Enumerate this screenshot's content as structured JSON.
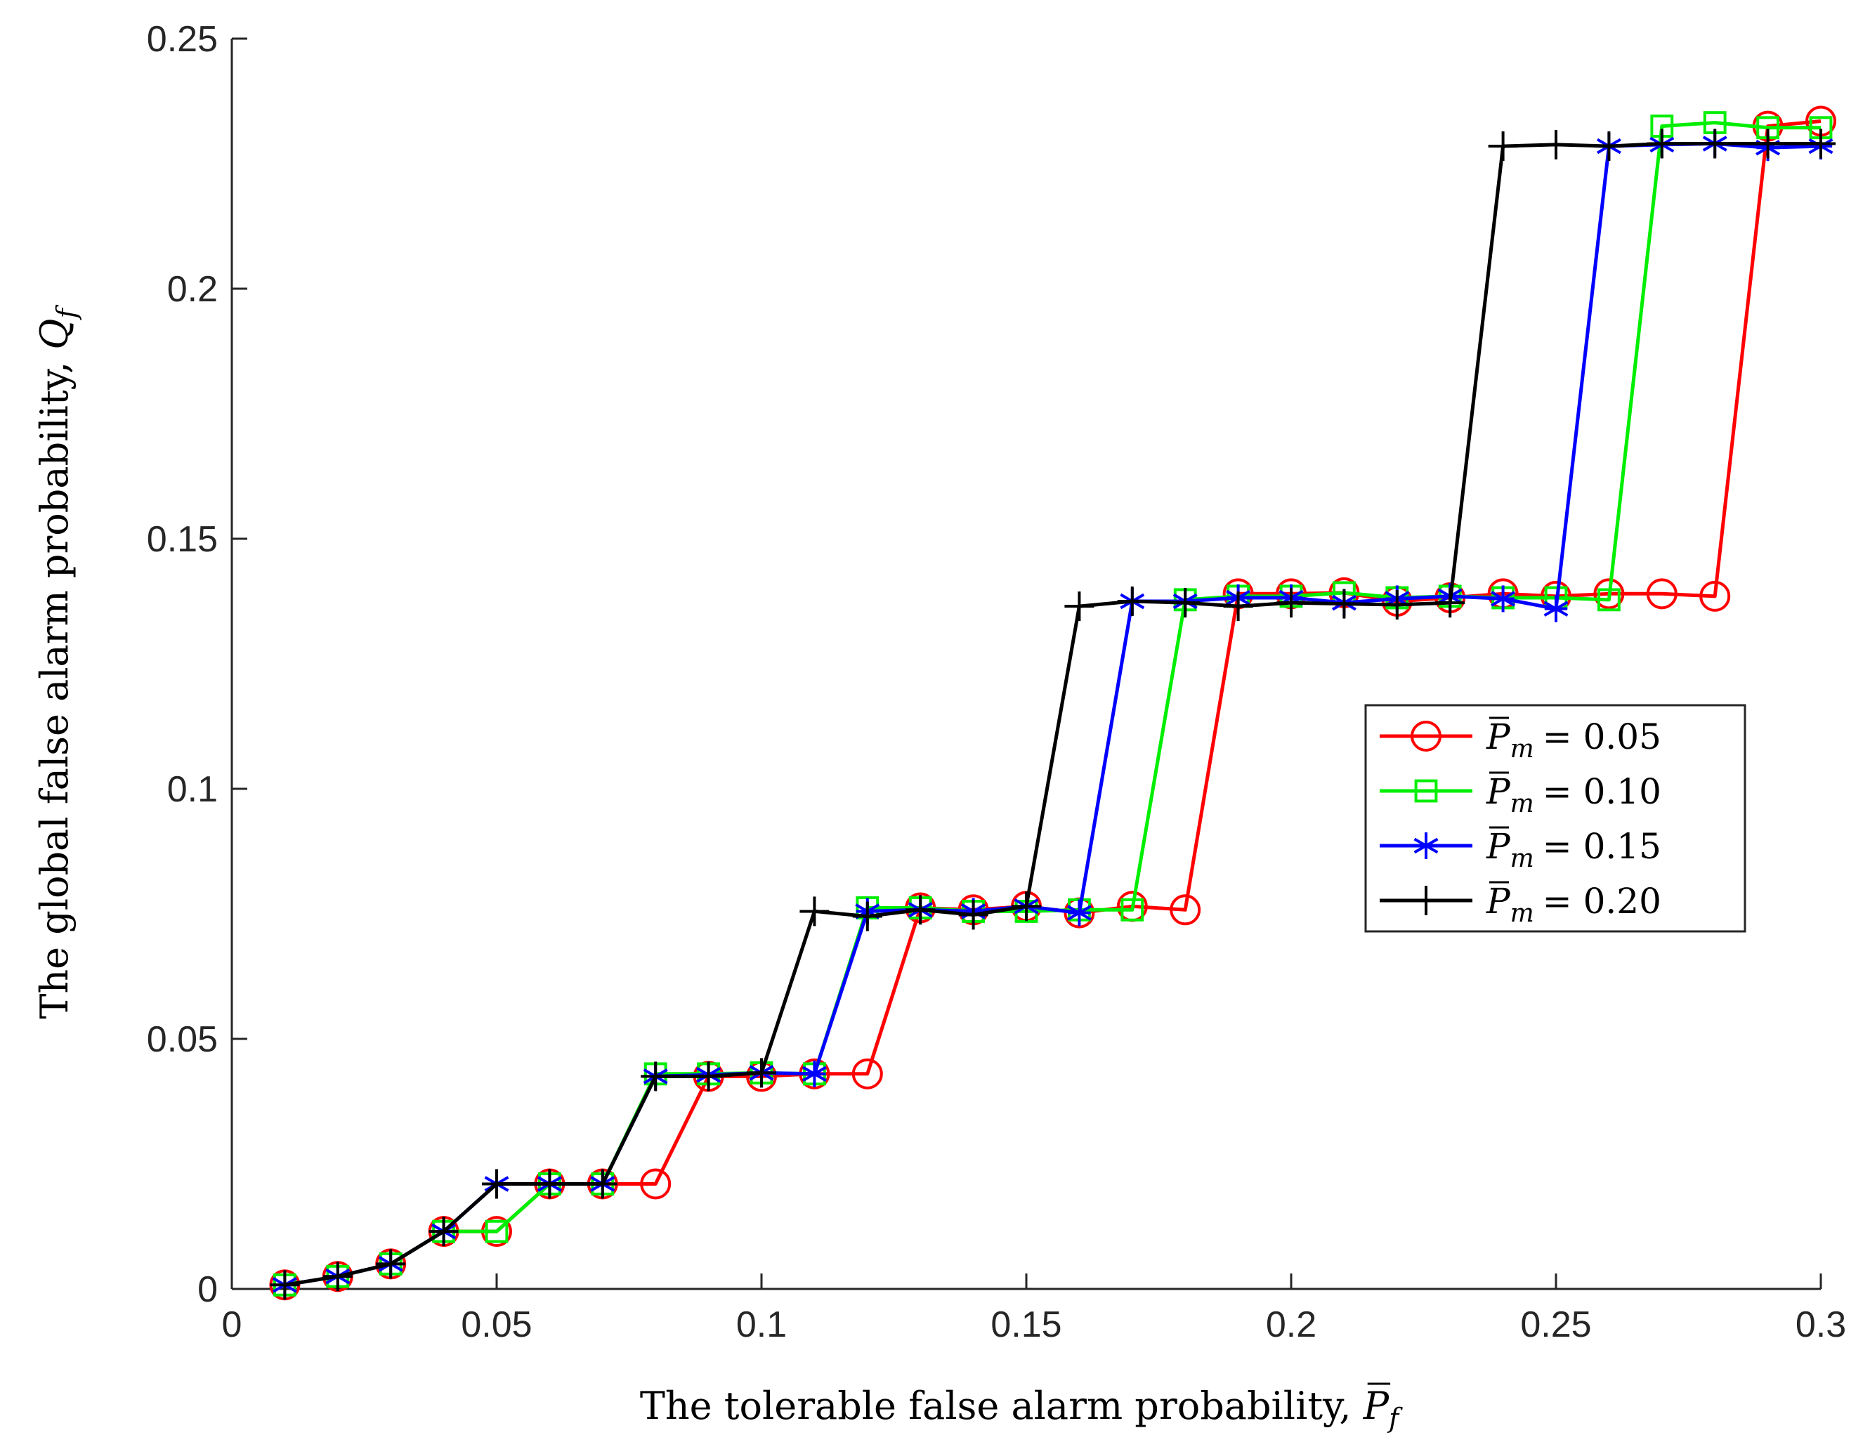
{
  "chart_data": {
    "type": "line",
    "title": "",
    "xlabel": "The tolerable false alarm probability, P̄f",
    "xlabel_parts": {
      "text": "The tolerable false alarm probability, ",
      "sym": "P",
      "sub": "f"
    },
    "ylabel": "The global false alarm probability, Qf",
    "ylabel_parts": {
      "text": "The global false alarm probability, ",
      "sym": "Q",
      "sub": "f"
    },
    "xlim": [
      0,
      0.3
    ],
    "ylim": [
      0,
      0.25
    ],
    "xticks": [
      0,
      0.05,
      0.1,
      0.15,
      0.2,
      0.25,
      0.3
    ],
    "xtick_labels": [
      "0",
      "0.05",
      "0.1",
      "0.15",
      "0.2",
      "0.25",
      "0.3"
    ],
    "yticks": [
      0,
      0.05,
      0.1,
      0.15,
      0.2,
      0.25
    ],
    "ytick_labels": [
      "0",
      "0.05",
      "0.1",
      "0.15",
      "0.2",
      "0.25"
    ],
    "grid": false,
    "legend_position": "right",
    "x": [
      0.01,
      0.02,
      0.03,
      0.04,
      0.05,
      0.06,
      0.07,
      0.08,
      0.09,
      0.1,
      0.11,
      0.12,
      0.13,
      0.14,
      0.15,
      0.16,
      0.17,
      0.18,
      0.19,
      0.2,
      0.21,
      0.22,
      0.23,
      0.24,
      0.25,
      0.26,
      0.27,
      0.28,
      0.29,
      0.3
    ],
    "series": [
      {
        "name": "P̄m = 0.05",
        "label_sym": "P",
        "label_sub": "m",
        "label_value": "= 0.05",
        "color": "#ff0000",
        "marker": "circle",
        "values": [
          0.0008,
          0.0025,
          0.005,
          0.0115,
          0.0115,
          0.021,
          0.021,
          0.021,
          0.0425,
          0.0425,
          0.043,
          0.043,
          0.0762,
          0.0758,
          0.0765,
          0.0752,
          0.0765,
          0.0758,
          0.139,
          0.139,
          0.1392,
          0.1375,
          0.1382,
          0.139,
          0.1385,
          0.139,
          0.139,
          0.1385,
          0.2325,
          0.2335
        ]
      },
      {
        "name": "P̄m = 0.10",
        "label_sym": "P",
        "label_sub": "m",
        "label_value": "= 0.10",
        "color": "#00ee00",
        "marker": "square",
        "values": [
          0.0008,
          0.0025,
          0.005,
          0.0115,
          0.0115,
          0.021,
          0.021,
          0.043,
          0.043,
          0.0432,
          0.043,
          0.0762,
          0.0762,
          0.0755,
          0.0755,
          0.0758,
          0.0758,
          0.1378,
          0.1385,
          0.1385,
          0.1392,
          0.1382,
          0.1385,
          0.1382,
          0.1382,
          0.1378,
          0.2325,
          0.2332,
          0.2322,
          0.2322
        ]
      },
      {
        "name": "P̄m = 0.15",
        "label_sym": "P",
        "label_sub": "m",
        "label_value": "= 0.15",
        "color": "#0000ff",
        "marker": "asterisk",
        "values": [
          0.0008,
          0.0025,
          0.005,
          0.0115,
          0.021,
          0.021,
          0.021,
          0.0425,
          0.0428,
          0.0432,
          0.043,
          0.0755,
          0.0758,
          0.0755,
          0.0765,
          0.0752,
          0.1375,
          0.1375,
          0.1382,
          0.1382,
          0.1372,
          0.138,
          0.1385,
          0.138,
          0.136,
          0.2285,
          0.2288,
          0.229,
          0.2282,
          0.2285
        ]
      },
      {
        "name": "P̄m = 0.20",
        "label_sym": "P",
        "label_sub": "m",
        "label_value": "= 0.20",
        "color": "#000000",
        "marker": "plus",
        "values": [
          0.0008,
          0.0025,
          0.005,
          0.0115,
          0.021,
          0.021,
          0.021,
          0.0425,
          0.0425,
          0.0432,
          0.0755,
          0.0745,
          0.0758,
          0.0748,
          0.0765,
          0.1365,
          0.1375,
          0.1372,
          0.1365,
          0.1372,
          0.137,
          0.1368,
          0.1372,
          0.2285,
          0.2288,
          0.2285,
          0.229,
          0.229,
          0.229,
          0.229
        ]
      }
    ]
  }
}
